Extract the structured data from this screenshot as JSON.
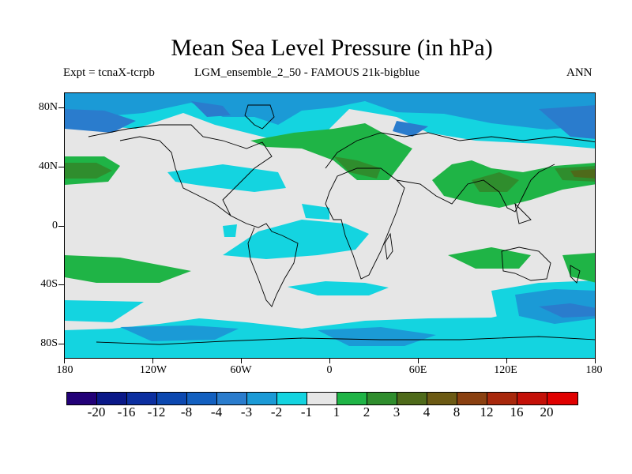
{
  "title": "Mean Sea Level Pressure (in hPa)",
  "subtitle_left": "Expt = tcnaX-tcrpb",
  "subtitle_run": "LGM_ensemble_2_50 - FAMOUS 21k-bigblue",
  "season": "ANN",
  "map": {
    "lat_labels": [
      "80N",
      "40N",
      "0",
      "40S",
      "80S"
    ],
    "lon_labels": [
      "180",
      "120W",
      "60W",
      "0",
      "60E",
      "120E",
      "180"
    ],
    "background_class_color": "#e6e6e6"
  },
  "colorbar": {
    "colors": [
      "#220077",
      "#0a1888",
      "#0c2fa0",
      "#0c48b0",
      "#1360c0",
      "#2a7ccd",
      "#1b9ad6",
      "#14d4e0",
      "#e6e6e6",
      "#1fb446",
      "#2f8d2d",
      "#4e6a1a",
      "#6c5a14",
      "#8a4010",
      "#a8280c",
      "#c41008",
      "#e00000"
    ],
    "labels": [
      "-20",
      "-16",
      "-12",
      "-8",
      "-4",
      "-3",
      "-2",
      "-1",
      "1",
      "2",
      "3",
      "4",
      "8",
      "12",
      "16",
      "20"
    ]
  }
}
